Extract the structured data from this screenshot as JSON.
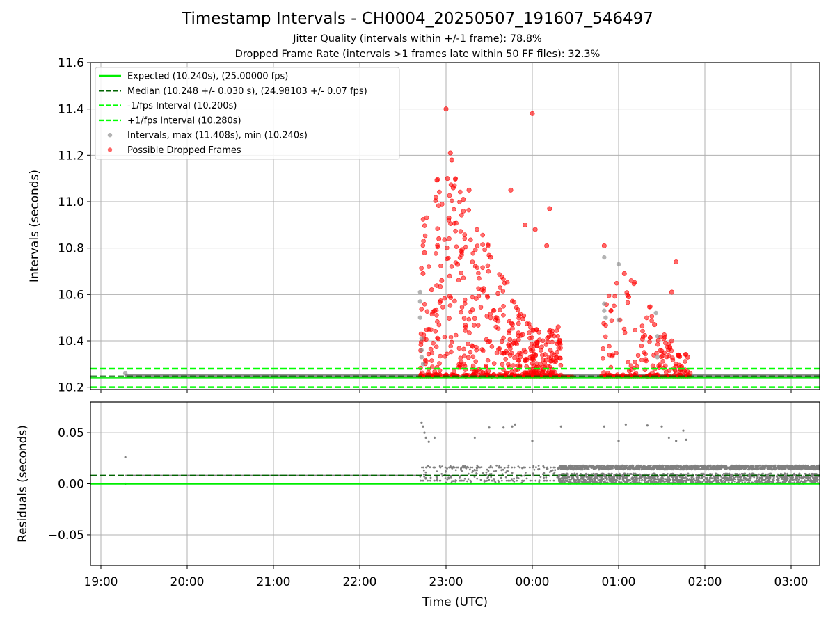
{
  "figure": {
    "title": "Timestamp Intervals - CH0004_20250507_191607_546497",
    "subtitle_1": "Jitter Quality (intervals within +/-1 frame): 78.8%",
    "subtitle_2": "Dropped Frame Rate (intervals >1 frames late within 50 FF files): 32.3%"
  },
  "colors": {
    "expected": "#00ee00",
    "median": "#006400",
    "fps_bounds": "#00ff00",
    "intervals": "#808080",
    "dropped": "#ff0000",
    "grid": "#b0b0b0"
  },
  "chart_data": [
    {
      "type": "scatter",
      "panel": "intervals",
      "ylabel": "Intervals (seconds)",
      "xlabel": "",
      "ylim": [
        10.19,
        11.6
      ],
      "yticks": [
        "10.2",
        "10.4",
        "10.6",
        "10.8",
        "11.0",
        "11.2",
        "11.4",
        "11.6"
      ],
      "grid": true,
      "legend_position": "upper-left",
      "legend": [
        "Expected (10.240s), (25.00000 fps)",
        "Median (10.248 +/- 0.030 s), (24.98103 +/- 0.07 fps)",
        "-1/fps Interval (10.200s)",
        "+1/fps Interval (10.280s)",
        "Intervals, max (11.408s), min (10.240s)",
        "Possible Dropped Frames"
      ],
      "reference_lines": {
        "expected": 10.24,
        "median": 10.248,
        "minus_1_fps": 10.2,
        "plus_1_fps": 10.28
      },
      "baseline_segments": [
        {
          "x_start": "19:17",
          "x_end": "22:50",
          "y": 10.248
        },
        {
          "x_start": "00:18",
          "x_end": "03:20",
          "y": 10.248
        }
      ],
      "intervals_sample": [
        {
          "x": "19:17",
          "y": 10.26
        },
        {
          "x": "22:42",
          "y": 10.61
        },
        {
          "x": "22:42",
          "y": 10.57
        },
        {
          "x": "22:42",
          "y": 10.5
        },
        {
          "x": "22:43",
          "y": 10.41
        },
        {
          "x": "22:43",
          "y": 10.36
        },
        {
          "x": "22:43",
          "y": 10.33
        },
        {
          "x": "22:44",
          "y": 10.3
        },
        {
          "x": "00:50",
          "y": 10.76
        },
        {
          "x": "00:50",
          "y": 10.56
        },
        {
          "x": "00:50",
          "y": 10.53
        },
        {
          "x": "00:51",
          "y": 10.5
        },
        {
          "x": "01:00",
          "y": 10.73
        },
        {
          "x": "01:00",
          "y": 10.49
        },
        {
          "x": "01:26",
          "y": 10.52
        },
        {
          "x": "01:27",
          "y": 10.42
        },
        {
          "x": "01:27",
          "y": 10.33
        }
      ],
      "dropped_frames_sample": [
        {
          "x": "22:44",
          "y": 10.69
        },
        {
          "x": "22:45",
          "y": 10.78
        },
        {
          "x": "22:48",
          "y": 10.45
        },
        {
          "x": "22:50",
          "y": 10.62
        },
        {
          "x": "22:52",
          "y": 10.53
        },
        {
          "x": "22:55",
          "y": 10.84
        },
        {
          "x": "22:57",
          "y": 10.66
        },
        {
          "x": "23:00",
          "y": 11.4
        },
        {
          "x": "23:01",
          "y": 11.1
        },
        {
          "x": "23:02",
          "y": 10.93
        },
        {
          "x": "23:03",
          "y": 11.21
        },
        {
          "x": "23:04",
          "y": 11.18
        },
        {
          "x": "23:05",
          "y": 11.06
        },
        {
          "x": "23:08",
          "y": 10.73
        },
        {
          "x": "23:12",
          "y": 11.01
        },
        {
          "x": "23:16",
          "y": 11.05
        },
        {
          "x": "23:25",
          "y": 10.62
        },
        {
          "x": "23:31",
          "y": 10.76
        },
        {
          "x": "23:45",
          "y": 11.05
        },
        {
          "x": "23:55",
          "y": 10.9
        },
        {
          "x": "00:00",
          "y": 11.38
        },
        {
          "x": "00:02",
          "y": 10.88
        },
        {
          "x": "00:10",
          "y": 10.81
        },
        {
          "x": "00:12",
          "y": 10.97
        },
        {
          "x": "00:18",
          "y": 10.46
        },
        {
          "x": "00:50",
          "y": 10.81
        },
        {
          "x": "01:04",
          "y": 10.69
        },
        {
          "x": "01:07",
          "y": 10.59
        },
        {
          "x": "01:25",
          "y": 10.47
        },
        {
          "x": "01:37",
          "y": 10.61
        },
        {
          "x": "01:40",
          "y": 10.74
        },
        {
          "x": "01:48",
          "y": 10.33
        }
      ]
    },
    {
      "type": "scatter",
      "panel": "residuals",
      "ylabel": "Residuals (seconds)",
      "xlabel": "Time (UTC)",
      "ylim": [
        -0.08,
        0.08
      ],
      "yticks": [
        "−0.05",
        "0.00",
        "0.05"
      ],
      "xticks": [
        "19:00",
        "20:00",
        "21:00",
        "22:00",
        "23:00",
        "00:00",
        "01:00",
        "02:00",
        "03:00"
      ],
      "grid": true,
      "reference_lines": {
        "expected": 0.0,
        "median": 0.008
      },
      "baseline_segment": {
        "x_start": "19:17",
        "x_end": "22:40",
        "y": 0.008
      },
      "residual_band": {
        "x_start": "00:18",
        "x_end": "03:20",
        "y_min": 0.0,
        "y_max": 0.018
      },
      "residuals_sample": [
        {
          "x": "19:17",
          "y": 0.026
        },
        {
          "x": "19:17",
          "y": 0.0
        },
        {
          "x": "22:43",
          "y": 0.06
        },
        {
          "x": "22:44",
          "y": 0.056
        },
        {
          "x": "22:45",
          "y": 0.05
        },
        {
          "x": "22:46",
          "y": 0.045
        },
        {
          "x": "22:48",
          "y": 0.041
        },
        {
          "x": "22:52",
          "y": 0.045
        },
        {
          "x": "23:20",
          "y": 0.045
        },
        {
          "x": "23:30",
          "y": 0.055
        },
        {
          "x": "23:40",
          "y": 0.055
        },
        {
          "x": "23:46",
          "y": 0.056
        },
        {
          "x": "23:48",
          "y": 0.058
        },
        {
          "x": "00:00",
          "y": 0.042
        },
        {
          "x": "00:20",
          "y": 0.056
        },
        {
          "x": "00:50",
          "y": 0.056
        },
        {
          "x": "01:00",
          "y": 0.042
        },
        {
          "x": "01:05",
          "y": 0.058
        },
        {
          "x": "01:20",
          "y": 0.057
        },
        {
          "x": "01:30",
          "y": 0.056
        },
        {
          "x": "01:35",
          "y": 0.045
        },
        {
          "x": "01:40",
          "y": 0.042
        },
        {
          "x": "01:45",
          "y": 0.052
        },
        {
          "x": "01:47",
          "y": 0.043
        }
      ]
    }
  ]
}
